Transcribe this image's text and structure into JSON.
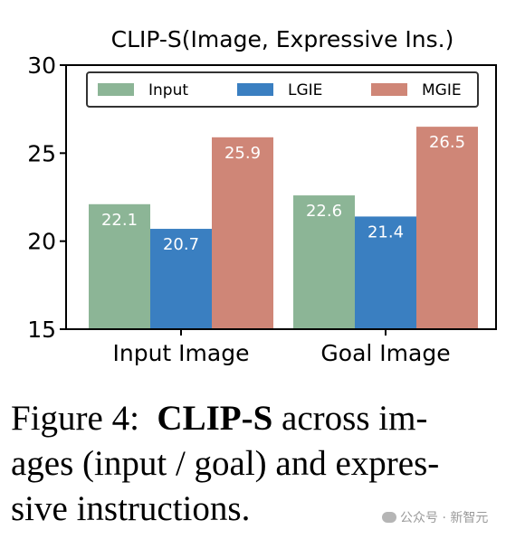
{
  "chart_data": {
    "type": "bar",
    "title": "CLIP-S(Image, Expressive Ins.)",
    "xlabel": "",
    "ylabel": "",
    "categories": [
      "Input Image",
      "Goal Image"
    ],
    "series": [
      {
        "name": "Input",
        "color": "#8cb596",
        "values": [
          22.1,
          22.6
        ]
      },
      {
        "name": "LGIE",
        "color": "#3a7fc1",
        "values": [
          20.7,
          21.4
        ]
      },
      {
        "name": "MGIE",
        "color": "#cf8677",
        "values": [
          25.9,
          26.5
        ]
      }
    ],
    "ylim": [
      15,
      30
    ],
    "yticks": [
      15,
      20,
      25,
      30
    ],
    "legend": "top",
    "grid": false
  },
  "caption": {
    "label": "Figure 4:",
    "bold": "CLIP-S",
    "line1_rest": "across im-",
    "line2": "ages (input / goal) and expres-",
    "line3": "sive instructions."
  },
  "watermark": {
    "icon": "wechat-icon",
    "text": "公众号 · 新智元"
  }
}
